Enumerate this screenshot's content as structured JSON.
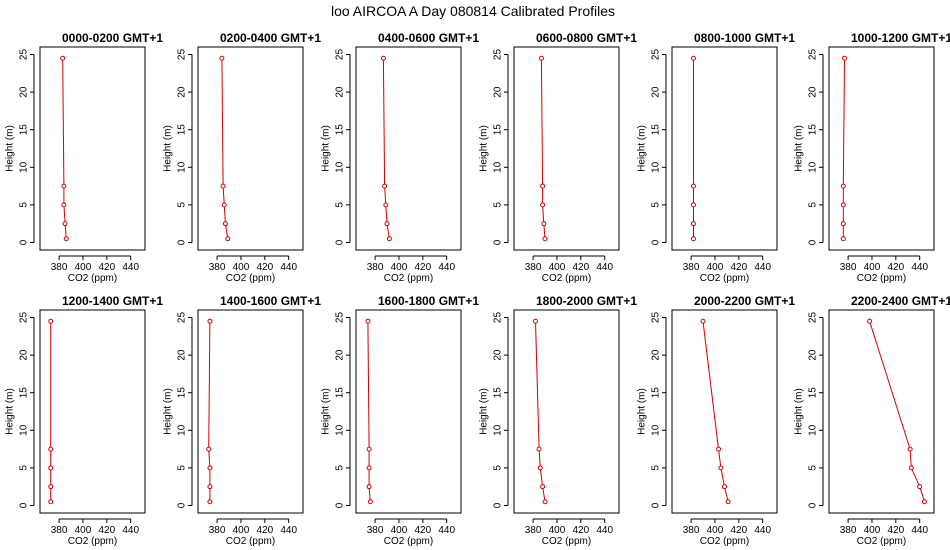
{
  "figure": {
    "title": "loo AIRCOA A  Day 080814  Calibrated Profiles",
    "colors": {
      "series": "#d40000",
      "axes": "#000000",
      "background": "#ffffff"
    }
  },
  "chart_data": [
    {
      "type": "line",
      "title": "0000-0200 GMT+1",
      "xlabel": "CO2 (ppm)",
      "ylabel": "Height (m)",
      "xlim": [
        368,
        448
      ],
      "ylim": [
        0,
        25
      ],
      "xticks": [
        380,
        400,
        420,
        440
      ],
      "yticks": [
        0,
        5,
        10,
        15,
        20,
        25
      ],
      "series": [
        {
          "x": [
            386,
            385,
            384,
            384,
            383
          ],
          "y": [
            0.5,
            2.5,
            5,
            7.5,
            24.5
          ]
        }
      ]
    },
    {
      "type": "line",
      "title": "0200-0400 GMT+1",
      "xlabel": "CO2 (ppm)",
      "ylabel": "Height (m)",
      "xlim": [
        368,
        448
      ],
      "ylim": [
        0,
        25
      ],
      "xticks": [
        380,
        400,
        420,
        440
      ],
      "yticks": [
        0,
        5,
        10,
        15,
        20,
        25
      ],
      "series": [
        {
          "x": [
            389,
            387,
            386,
            385,
            384
          ],
          "y": [
            0.5,
            2.5,
            5,
            7.5,
            24.5
          ]
        }
      ]
    },
    {
      "type": "line",
      "title": "0400-0600 GMT+1",
      "xlabel": "CO2 (ppm)",
      "ylabel": "Height (m)",
      "xlim": [
        368,
        448
      ],
      "ylim": [
        0,
        25
      ],
      "xticks": [
        380,
        400,
        420,
        440
      ],
      "yticks": [
        0,
        5,
        10,
        15,
        20,
        25
      ],
      "series": [
        {
          "x": [
            392,
            390,
            389,
            388,
            387
          ],
          "y": [
            0.5,
            2.5,
            5,
            7.5,
            24.5
          ]
        }
      ]
    },
    {
      "type": "line",
      "title": "0600-0800 GMT+1",
      "xlabel": "CO2 (ppm)",
      "ylabel": "Height (m)",
      "xlim": [
        368,
        448
      ],
      "ylim": [
        0,
        25
      ],
      "xticks": [
        380,
        400,
        420,
        440
      ],
      "yticks": [
        0,
        5,
        10,
        15,
        20,
        25
      ],
      "series": [
        {
          "x": [
            390,
            389,
            388,
            388,
            387
          ],
          "y": [
            0.5,
            2.5,
            5,
            7.5,
            24.5
          ]
        }
      ]
    },
    {
      "type": "line",
      "title": "0800-1000 GMT+1",
      "xlabel": "CO2 (ppm)",
      "ylabel": "Height (m)",
      "xlim": [
        368,
        448
      ],
      "ylim": [
        0,
        25
      ],
      "xticks": [
        380,
        400,
        420,
        440
      ],
      "yticks": [
        0,
        5,
        10,
        15,
        20,
        25
      ],
      "series": [
        {
          "x": [
            382,
            382,
            382,
            382,
            382
          ],
          "y": [
            0.5,
            2.5,
            5,
            7.5,
            24.5
          ]
        }
      ]
    },
    {
      "type": "line",
      "title": "1000-1200 GMT+1",
      "xlabel": "CO2 (ppm)",
      "ylabel": "Height (m)",
      "xlim": [
        368,
        448
      ],
      "ylim": [
        0,
        25
      ],
      "xticks": [
        380,
        400,
        420,
        440
      ],
      "yticks": [
        0,
        5,
        10,
        15,
        20,
        25
      ],
      "series": [
        {
          "x": [
            376,
            376,
            376,
            376,
            377
          ],
          "y": [
            0.5,
            2.5,
            5,
            7.5,
            24.5
          ]
        }
      ]
    },
    {
      "type": "line",
      "title": "1200-1400 GMT+1",
      "xlabel": "CO2 (ppm)",
      "ylabel": "Height (m)",
      "xlim": [
        368,
        448
      ],
      "ylim": [
        0,
        25
      ],
      "xticks": [
        380,
        400,
        420,
        440
      ],
      "yticks": [
        0,
        5,
        10,
        15,
        20,
        25
      ],
      "series": [
        {
          "x": [
            373,
            373,
            373,
            373,
            373
          ],
          "y": [
            0.5,
            2.5,
            5,
            7.5,
            24.5
          ]
        }
      ]
    },
    {
      "type": "line",
      "title": "1400-1600 GMT+1",
      "xlabel": "CO2 (ppm)",
      "ylabel": "Height (m)",
      "xlim": [
        368,
        448
      ],
      "ylim": [
        0,
        25
      ],
      "xticks": [
        380,
        400,
        420,
        440
      ],
      "yticks": [
        0,
        5,
        10,
        15,
        20,
        25
      ],
      "series": [
        {
          "x": [
            374,
            374,
            374,
            373,
            374
          ],
          "y": [
            0.5,
            2.5,
            5,
            7.5,
            24.5
          ]
        }
      ]
    },
    {
      "type": "line",
      "title": "1600-1800 GMT+1",
      "xlabel": "CO2 (ppm)",
      "ylabel": "Height (m)",
      "xlim": [
        368,
        448
      ],
      "ylim": [
        0,
        25
      ],
      "xticks": [
        380,
        400,
        420,
        440
      ],
      "yticks": [
        0,
        5,
        10,
        15,
        20,
        25
      ],
      "series": [
        {
          "x": [
            376,
            375,
            375,
            375,
            374
          ],
          "y": [
            0.5,
            2.5,
            5,
            7.5,
            24.5
          ]
        }
      ]
    },
    {
      "type": "line",
      "title": "1800-2000 GMT+1",
      "xlabel": "CO2 (ppm)",
      "ylabel": "Height (m)",
      "xlim": [
        368,
        448
      ],
      "ylim": [
        0,
        25
      ],
      "xticks": [
        380,
        400,
        420,
        440
      ],
      "yticks": [
        0,
        5,
        10,
        15,
        20,
        25
      ],
      "series": [
        {
          "x": [
            390,
            388,
            386,
            385,
            382
          ],
          "y": [
            0.5,
            2.5,
            5,
            7.5,
            24.5
          ]
        }
      ]
    },
    {
      "type": "line",
      "title": "2000-2200 GMT+1",
      "xlabel": "CO2 (ppm)",
      "ylabel": "Height (m)",
      "xlim": [
        368,
        448
      ],
      "ylim": [
        0,
        25
      ],
      "xticks": [
        380,
        400,
        420,
        440
      ],
      "yticks": [
        0,
        5,
        10,
        15,
        20,
        25
      ],
      "series": [
        {
          "x": [
            411,
            408,
            405,
            403,
            390
          ],
          "y": [
            0.5,
            2.5,
            5,
            7.5,
            24.5
          ]
        }
      ]
    },
    {
      "type": "line",
      "title": "2200-2400 GMT+1",
      "xlabel": "CO2 (ppm)",
      "ylabel": "Height (m)",
      "xlim": [
        368,
        448
      ],
      "ylim": [
        0,
        25
      ],
      "xticks": [
        380,
        400,
        420,
        440
      ],
      "yticks": [
        0,
        5,
        10,
        15,
        20,
        25
      ],
      "series": [
        {
          "x": [
            444,
            440,
            433,
            432,
            398
          ],
          "y": [
            0.5,
            2.5,
            5,
            7.5,
            24.5
          ]
        }
      ]
    }
  ]
}
